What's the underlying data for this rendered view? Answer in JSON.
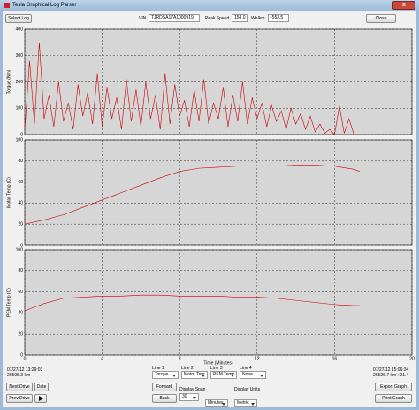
{
  "window": {
    "title": "Tesla Graphical Log Parser"
  },
  "toolbar": {
    "select_log": "Select Log",
    "vin_label": "VIN",
    "vin": "TJRDSA17A1000919",
    "peak_speed_label": "Peak Speed",
    "peak_speed": "158.0",
    "whkm_label": "Wh/km",
    "whkm": "-553.5",
    "close": "Close"
  },
  "charts": [
    {
      "type": "line",
      "ylabel": "Torque (Nm)",
      "color": "#cc0000",
      "grid": true,
      "x": [
        0,
        0.25,
        0.5,
        0.75,
        1,
        1.25,
        1.5,
        1.75,
        2,
        2.25,
        2.5,
        2.75,
        3,
        3.25,
        3.5,
        3.75,
        4,
        4.25,
        4.5,
        4.75,
        5,
        5.25,
        5.5,
        5.75,
        6,
        6.25,
        6.5,
        6.75,
        7,
        7.25,
        7.5,
        7.75,
        8,
        8.25,
        8.5,
        8.75,
        9,
        9.25,
        9.5,
        9.75,
        10,
        10.25,
        10.5,
        10.75,
        11,
        11.25,
        11.5,
        11.75,
        12,
        12.25,
        12.5,
        12.75,
        13,
        13.25,
        13.5,
        13.75,
        14,
        14.25,
        14.5,
        14.75,
        15,
        15.25,
        15.5,
        15.75,
        16,
        16.25,
        16.5,
        16.75,
        17,
        17.25
      ],
      "values": [
        20,
        280,
        40,
        350,
        60,
        150,
        30,
        200,
        50,
        120,
        20,
        190,
        70,
        160,
        40,
        230,
        30,
        180,
        60,
        140,
        20,
        210,
        50,
        170,
        30,
        200,
        60,
        150,
        20,
        230,
        40,
        190,
        70,
        130,
        30,
        170,
        50,
        210,
        40,
        120,
        60,
        180,
        30,
        150,
        50,
        200,
        40,
        140,
        60,
        120,
        30,
        110,
        50,
        90,
        20,
        100,
        40,
        80,
        20,
        70,
        10,
        40,
        5,
        20,
        0,
        110,
        5,
        60,
        0,
        0
      ],
      "xlim": [
        0,
        20
      ],
      "ylim": [
        0,
        400
      ],
      "xticks": [
        0,
        4,
        8,
        12,
        16,
        20
      ],
      "yticks": [
        0,
        100,
        200,
        300,
        400
      ]
    },
    {
      "type": "line",
      "ylabel": "Motor Temp (C)",
      "color": "#cc0000",
      "grid": true,
      "x": [
        0,
        1,
        2,
        3,
        4,
        5,
        6,
        7,
        8,
        9,
        10,
        11,
        12,
        13,
        14,
        15,
        16,
        17,
        17.3
      ],
      "values": [
        20,
        24,
        29,
        36,
        43,
        50,
        57,
        64,
        70,
        73,
        74,
        75,
        75,
        75,
        76,
        76,
        75,
        72,
        70
      ],
      "xlim": [
        0,
        20
      ],
      "ylim": [
        0,
        100
      ],
      "xticks": [
        0,
        4,
        8,
        12,
        16,
        20
      ],
      "yticks": [
        0,
        20,
        40,
        60,
        80,
        100
      ]
    },
    {
      "type": "line",
      "ylabel": "PEM Temp (C)",
      "xlabel": "Time (Minutes)",
      "color": "#cc0000",
      "grid": true,
      "x": [
        0,
        1,
        2,
        3,
        4,
        5,
        6,
        7,
        8,
        9,
        10,
        11,
        12,
        13,
        14,
        15,
        16,
        17,
        17.3
      ],
      "values": [
        42,
        49,
        54,
        55,
        56,
        56,
        57,
        57,
        56,
        56,
        56,
        55,
        55,
        54,
        52,
        50,
        48,
        47,
        47
      ],
      "xlim": [
        0,
        20
      ],
      "ylim": [
        0,
        100
      ],
      "xticks": [
        0,
        4,
        8,
        12,
        16,
        20
      ],
      "yticks": [
        0,
        20,
        40,
        60,
        80,
        100
      ]
    }
  ],
  "controls": {
    "start_time": "07/27/12 13:29:03",
    "start_odo": "26505.3 km",
    "end_time": "07/27/12 15:06:34",
    "end_odo": "26526.7 km +21.4",
    "next_drive": "Next Drive",
    "date": "Date",
    "prev_drive": "Prev Drive",
    "lines": [
      {
        "label": "Line 1",
        "value": "Torque"
      },
      {
        "label": "Line 2",
        "value": "Motor Tem"
      },
      {
        "label": "Line 3",
        "value": "PEM Temp"
      },
      {
        "label": "Line 4",
        "value": "None"
      }
    ],
    "forward": "Forward",
    "back": "Back",
    "display_span_label": "Display Span",
    "display_span": "30",
    "span_unit": "Minutes",
    "display_units_label": "Display Units",
    "display_units": "Metric",
    "export_graph": "Export Graph",
    "print_graph": "Print Graph"
  }
}
